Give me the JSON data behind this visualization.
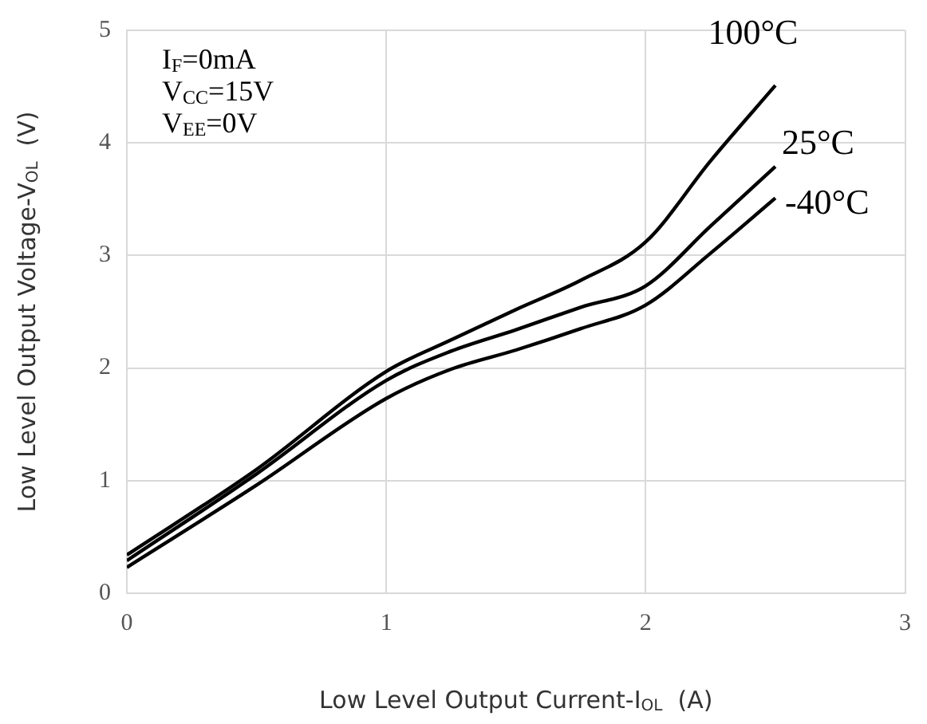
{
  "chart_data": {
    "type": "line",
    "xlabel": "Low Level Output Current-I$_{OL}$  (A)",
    "ylabel": "Low Level Output Voltage-V$_{OL}$  (V)",
    "x": [
      0,
      0.5,
      1,
      1.25,
      1.5,
      1.75,
      2,
      2.25,
      2.5
    ],
    "series": [
      {
        "name": "100°C",
        "color": "#000000",
        "values": [
          0.34,
          1.1,
          1.97,
          2.25,
          2.52,
          2.78,
          3.12,
          3.84,
          4.51
        ]
      },
      {
        "name": "25°C",
        "color": "#000000",
        "values": [
          0.29,
          1.06,
          1.89,
          2.15,
          2.34,
          2.54,
          2.73,
          3.26,
          3.79
        ]
      },
      {
        "name": "-40°C",
        "color": "#000000",
        "values": [
          0.23,
          0.96,
          1.73,
          1.99,
          2.16,
          2.35,
          2.56,
          3.02,
          3.51
        ]
      }
    ],
    "xlim": [
      0,
      3
    ],
    "xticks": [
      0,
      1,
      2,
      3
    ],
    "ylim": [
      0,
      5
    ],
    "yticks": [
      0,
      1,
      2,
      3,
      4,
      5
    ],
    "annotations": [
      "I$_{F}$=0mA",
      "V$_{CC}$=15V",
      "V$_{EE}$=0V"
    ],
    "grid": true,
    "legend": false,
    "marker": "none",
    "line_style": "solid"
  }
}
